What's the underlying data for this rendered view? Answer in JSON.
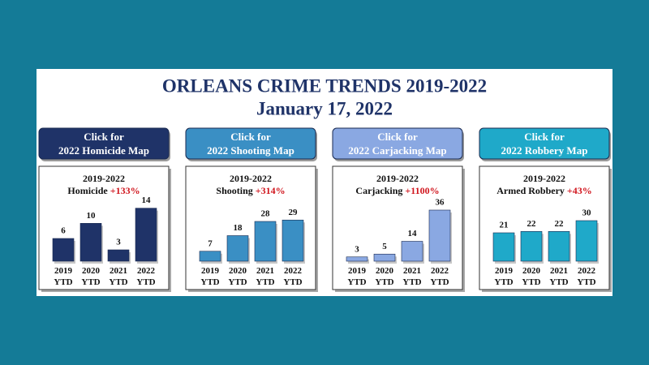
{
  "header": {
    "title": "ORLEANS CRIME TRENDS 2019-2022",
    "date": "January 17, 2022"
  },
  "chart_data": [
    {
      "type": "bar",
      "button": [
        "Click for",
        "2022 Homicide Map"
      ],
      "title": "2019-2022",
      "subtitle": "Homicide",
      "change": "+133%",
      "categories": [
        [
          "2019",
          "YTD"
        ],
        [
          "2020",
          "YTD"
        ],
        [
          "2021",
          "YTD"
        ],
        [
          "2022",
          "YTD"
        ]
      ],
      "values": [
        6,
        10,
        3,
        14
      ],
      "color": "#1f3368",
      "ylim": [
        0,
        15
      ]
    },
    {
      "type": "bar",
      "button": [
        "Click for",
        "2022 Shooting Map"
      ],
      "title": "2019-2022",
      "subtitle": "Shooting",
      "change": "+314%",
      "categories": [
        [
          "2019",
          "YTD"
        ],
        [
          "2020",
          "YTD"
        ],
        [
          "2021",
          "YTD"
        ],
        [
          "2022",
          "YTD"
        ]
      ],
      "values": [
        7,
        18,
        28,
        29
      ],
      "color": "#3a8fc4",
      "ylim": [
        0,
        40
      ]
    },
    {
      "type": "bar",
      "button": [
        "Click for",
        "2022 Carjacking Map"
      ],
      "title": "2019-2022",
      "subtitle": "Carjacking",
      "change": "+1100%",
      "categories": [
        [
          "2019",
          "YTD"
        ],
        [
          "2020",
          "YTD"
        ],
        [
          "2021",
          "YTD"
        ],
        [
          "2022",
          "YTD"
        ]
      ],
      "values": [
        3,
        5,
        14,
        36
      ],
      "color": "#8aa8e2",
      "ylim": [
        0,
        40
      ]
    },
    {
      "type": "bar",
      "button": [
        "Click for",
        "2022 Robbery Map"
      ],
      "title": "2019-2022",
      "subtitle": "Armed Robbery",
      "change": "+43%",
      "categories": [
        [
          "2019",
          "YTD"
        ],
        [
          "2020",
          "YTD"
        ],
        [
          "2021",
          "YTD"
        ],
        [
          "2022",
          "YTD"
        ]
      ],
      "values": [
        21,
        22,
        22,
        30
      ],
      "color": "#1fa9c9",
      "ylim": [
        0,
        42
      ]
    }
  ]
}
